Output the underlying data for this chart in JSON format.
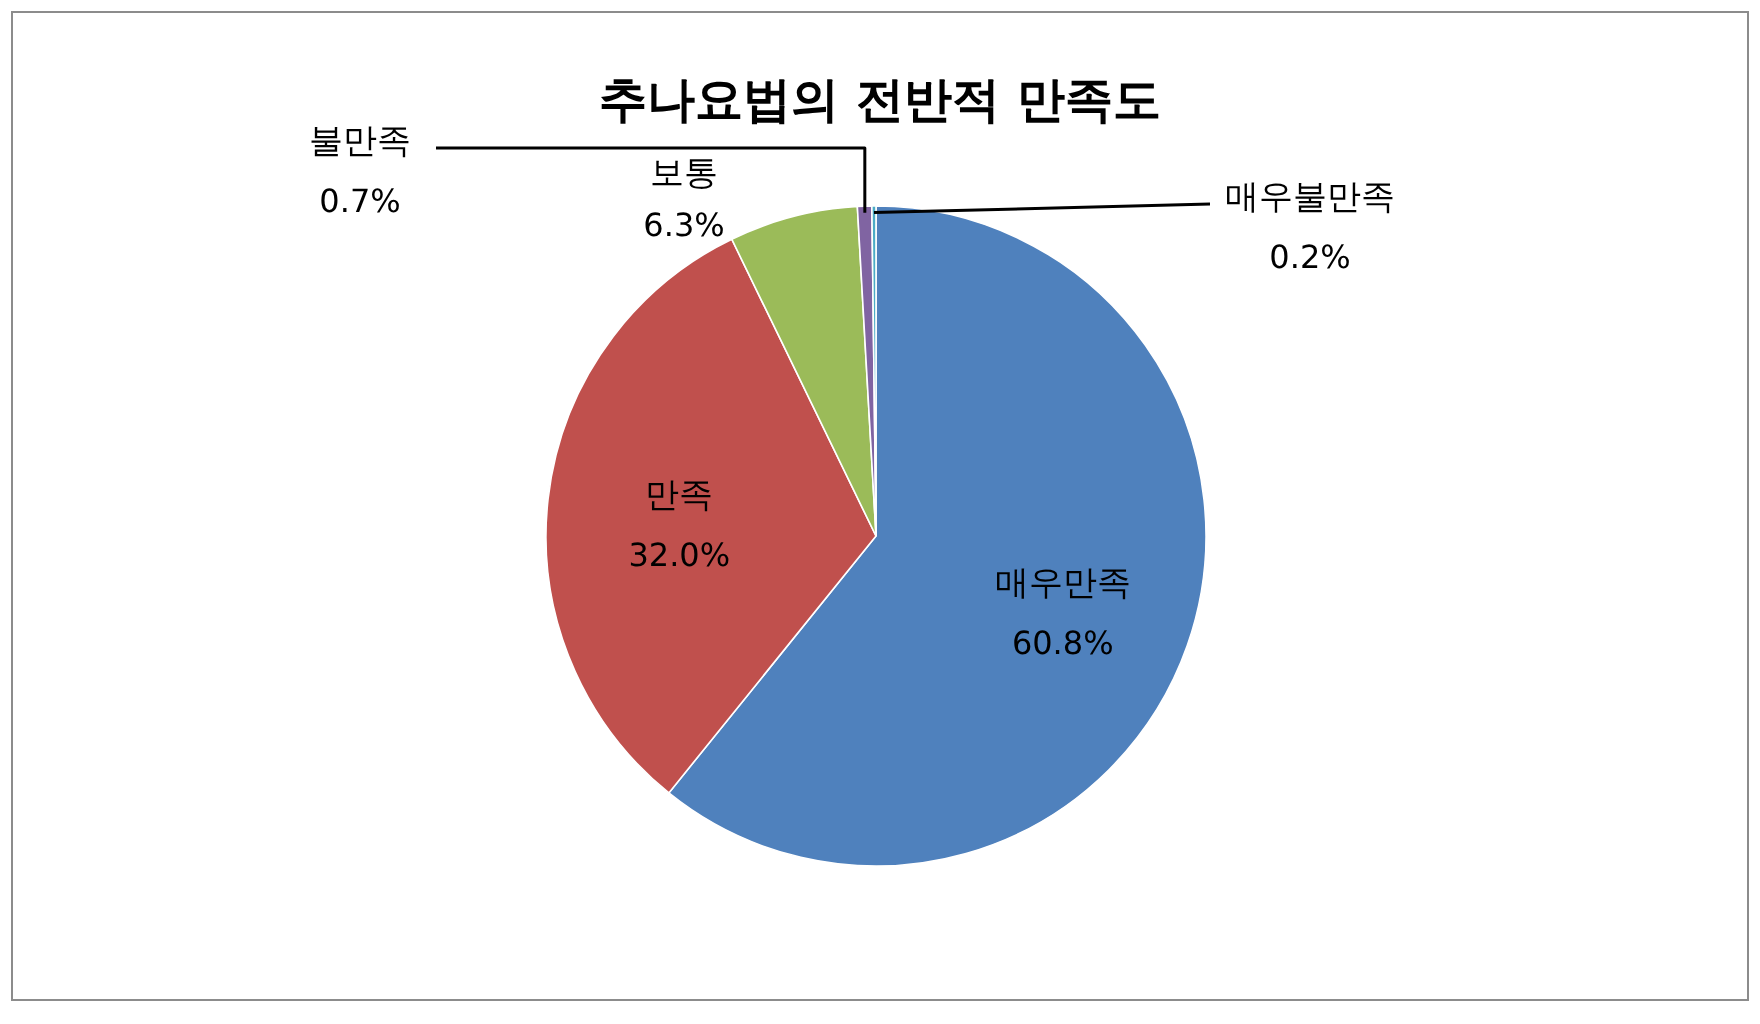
{
  "chart_data": {
    "type": "pie",
    "title": "추나요법의 전반적 만족도",
    "categories": [
      "매우만족",
      "만족",
      "보통",
      "불만족",
      "매우불만족"
    ],
    "values": [
      60.8,
      32.0,
      6.3,
      0.7,
      0.2
    ],
    "value_labels": [
      "60.8%",
      "32.0%",
      "6.3%",
      "0.7%",
      "0.2%"
    ],
    "colors": [
      "#4f81bd",
      "#c0504d",
      "#9bbb59",
      "#8064a2",
      "#4bacc6"
    ],
    "legend": false
  }
}
